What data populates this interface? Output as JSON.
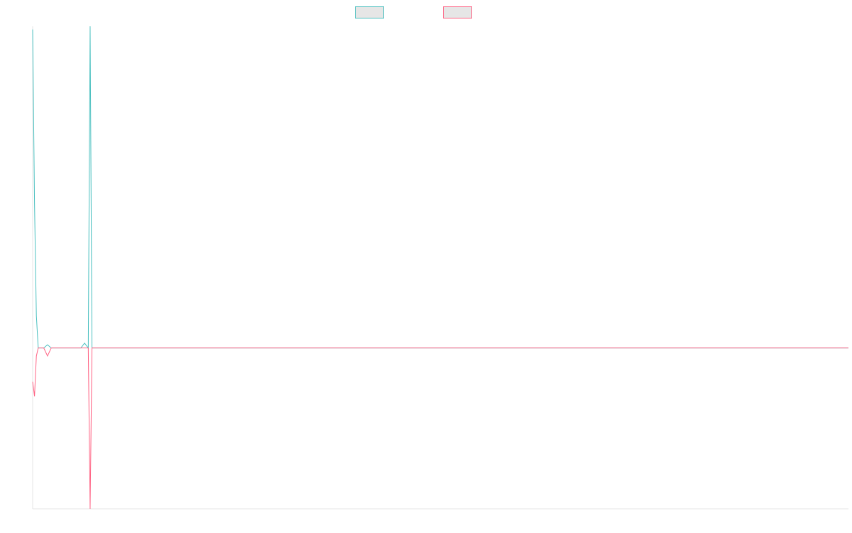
{
  "chart_data": {
    "type": "line",
    "title": "",
    "xlabel": "",
    "ylabel": "",
    "grid": false,
    "legend": "top-center",
    "x_count": 441,
    "ylim": [
      -1,
      2
    ],
    "series": [
      {
        "color": "#4bc0c0",
        "fill": "#e6e6e6",
        "points": [
          [
            0,
            1.98
          ],
          [
            1,
            0.9
          ],
          [
            2,
            0.2
          ],
          [
            3,
            0
          ],
          [
            6,
            0
          ],
          [
            8,
            0.02
          ],
          [
            10,
            0
          ],
          [
            26,
            0
          ],
          [
            28,
            0.03
          ],
          [
            30,
            0
          ],
          [
            31,
            2
          ],
          [
            32,
            0
          ],
          [
            440,
            0
          ]
        ]
      },
      {
        "color": "#ff6384",
        "fill": "#e6e6e6",
        "points": [
          [
            0,
            -0.21
          ],
          [
            1,
            -0.3
          ],
          [
            2,
            -0.05
          ],
          [
            3,
            0
          ],
          [
            6,
            0
          ],
          [
            8,
            -0.05
          ],
          [
            10,
            0
          ],
          [
            30,
            0
          ],
          [
            31,
            -1
          ],
          [
            32,
            0
          ],
          [
            440,
            0
          ]
        ]
      }
    ]
  }
}
